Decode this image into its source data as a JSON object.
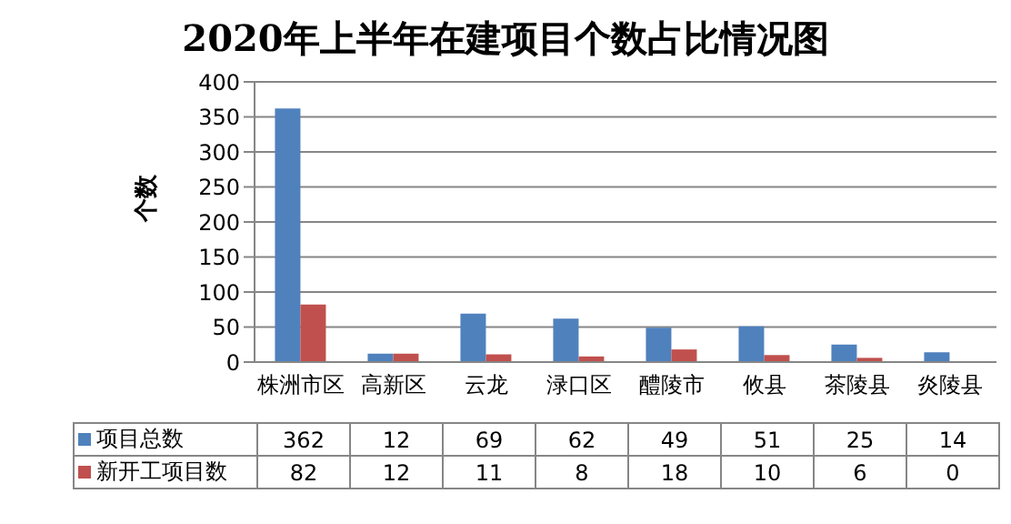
{
  "chart_data": {
    "type": "bar",
    "title": "2020年上半年在建项目个数占比情况图",
    "ylabel": "个数",
    "categories": [
      "株洲市区",
      "高新区",
      "云龙",
      "渌口区",
      "醴陵市",
      "攸县",
      "茶陵县",
      "炎陵县"
    ],
    "series": [
      {
        "name": "项目总数",
        "color": "#4f81bd",
        "values": [
          362,
          12,
          69,
          62,
          49,
          51,
          25,
          14
        ]
      },
      {
        "name": "新开工项目数",
        "color": "#c0504d",
        "values": [
          82,
          12,
          11,
          8,
          18,
          10,
          6,
          0
        ]
      }
    ],
    "ylim": [
      0,
      400
    ],
    "yticks": [
      0,
      50,
      100,
      150,
      200,
      250,
      300,
      350,
      400
    ],
    "grid": "y",
    "legend": "bottom",
    "data_labels": true
  }
}
